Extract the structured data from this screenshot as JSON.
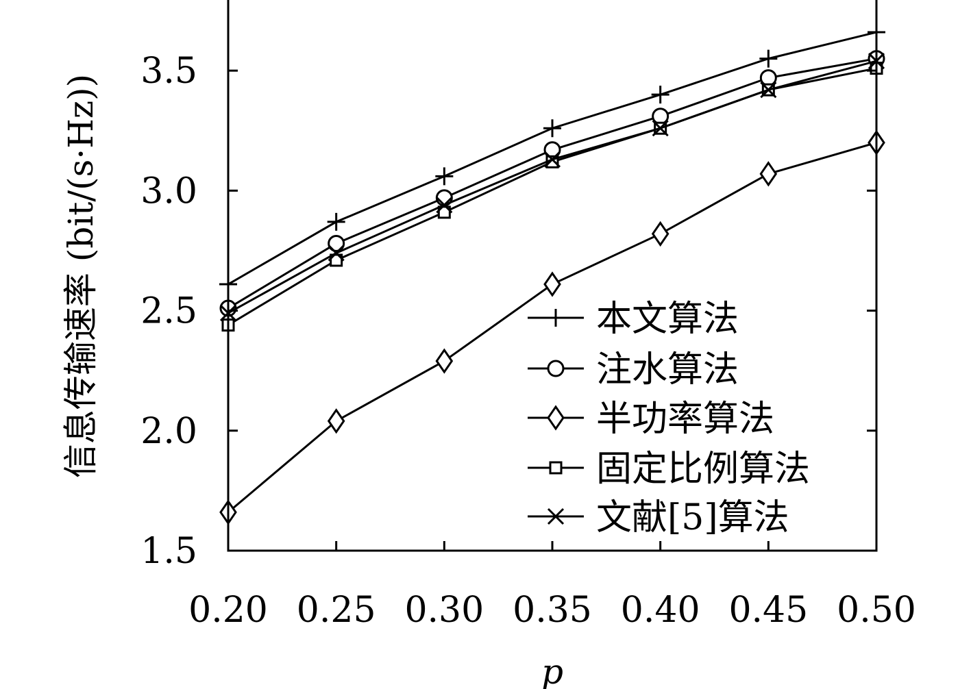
{
  "chart_data": {
    "type": "line",
    "title": "",
    "xlabel": "p",
    "ylabel": "信息传输速率 (bit/(s·Hz))",
    "x": [
      0.2,
      0.25,
      0.3,
      0.35,
      0.4,
      0.45,
      0.5
    ],
    "x_tick_labels": [
      "0.20",
      "0.25",
      "0.30",
      "0.35",
      "0.40",
      "0.45",
      "0.50"
    ],
    "y_ticks": [
      1.5,
      2.0,
      2.5,
      3.0,
      3.5
    ],
    "y_tick_labels": [
      "1.5",
      "2.0",
      "2.5",
      "3.0",
      "3.5"
    ],
    "xlim": [
      0.2,
      0.5
    ],
    "ylim": [
      1.5,
      3.8
    ],
    "grid": false,
    "legend_position": "bottom-right",
    "series": [
      {
        "name": "本文算法",
        "marker": "plus",
        "values": [
          2.61,
          2.87,
          3.06,
          3.26,
          3.4,
          3.55,
          3.66
        ]
      },
      {
        "name": "注水算法",
        "marker": "circle",
        "values": [
          2.51,
          2.78,
          2.97,
          3.17,
          3.31,
          3.47,
          3.55
        ]
      },
      {
        "name": "半功率算法",
        "marker": "diamond",
        "values": [
          1.66,
          2.04,
          2.29,
          2.61,
          2.82,
          3.07,
          3.2
        ]
      },
      {
        "name": "固定比例算法",
        "marker": "square",
        "values": [
          2.44,
          2.71,
          2.91,
          3.12,
          3.26,
          3.42,
          3.51
        ]
      },
      {
        "name": "文献[5]算法",
        "marker": "cross",
        "values": [
          2.49,
          2.74,
          2.94,
          3.13,
          3.26,
          3.42,
          3.54
        ]
      }
    ]
  }
}
